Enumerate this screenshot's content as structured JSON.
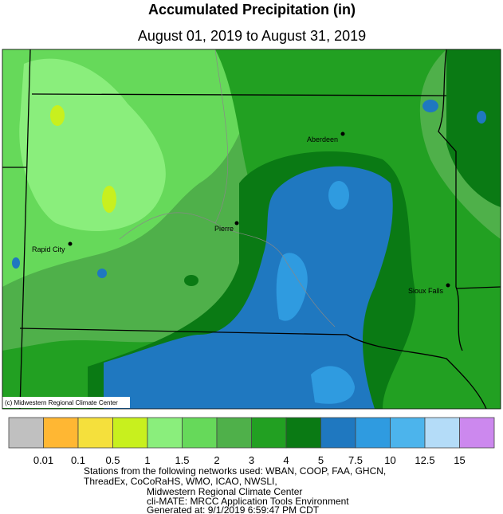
{
  "title": "Accumulated Precipitation (in)",
  "subtitle": "August 01, 2019 to August 31, 2019",
  "map": {
    "cities": [
      "Aberdeen",
      "Pierre",
      "Rapid City",
      "Sioux Falls"
    ],
    "credit": "(c) Midwestern Regional Climate Center"
  },
  "legend": {
    "colors": [
      "#c0c0c0",
      "#ffb733",
      "#f5e03c",
      "#c8f01e",
      "#8aee7c",
      "#66d95a",
      "#4fb04a",
      "#22a022",
      "#0a7a14",
      "#1f78c0",
      "#2f9be0",
      "#4cb4ec",
      "#b4dcf8",
      "#cc88ee"
    ],
    "labels": [
      "0.01",
      "0.1",
      "0.5",
      "1",
      "1.5",
      "2",
      "3",
      "4",
      "5",
      "7.5",
      "10",
      "12.5",
      "15"
    ]
  },
  "footer": [
    "Stations from the following networks used: WBAN, COOP, FAA, GHCN,",
    "ThreadEx, CoCoRaHS, WMO, ICAO, NWSLI,",
    "Midwestern Regional Climate Center",
    "cli-MATE: MRCC Application Tools Environment",
    "Generated at: 9/1/2019 6:59:47 PM CDT"
  ]
}
